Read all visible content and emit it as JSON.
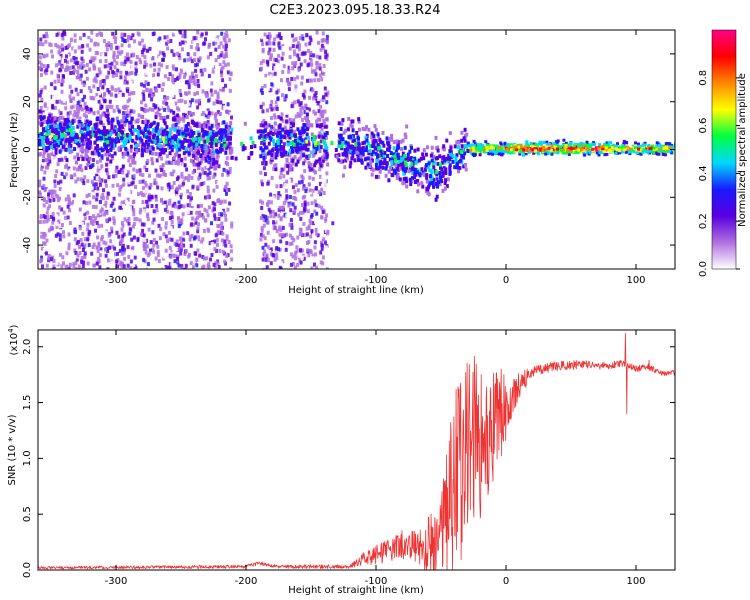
{
  "figure": {
    "title": "C2E3.2023.095.18.33.R24"
  },
  "chart_data": [
    {
      "type": "heatmap",
      "name": "spectrogram",
      "xlabel": "Height of straight line (km)",
      "ylabel": "Frequency (Hz)",
      "xlim": [
        -360,
        130
      ],
      "ylim": [
        -50,
        50
      ],
      "xticks": [
        -300,
        -200,
        -100,
        0,
        100
      ],
      "yticks": [
        -40,
        -20,
        0,
        20,
        40
      ],
      "gaps_without_signal_km": [
        [
          -212,
          -190
        ],
        [
          -138,
          -120
        ]
      ],
      "main_line": [
        {
          "x": -360,
          "y": 7
        },
        {
          "x": -300,
          "y": 6
        },
        {
          "x": -250,
          "y": 5
        },
        {
          "x": -200,
          "y": 4
        },
        {
          "x": -150,
          "y": 4
        },
        {
          "x": -110,
          "y": 2
        },
        {
          "x": -90,
          "y": -2
        },
        {
          "x": -70,
          "y": -6
        },
        {
          "x": -55,
          "y": -8
        },
        {
          "x": -45,
          "y": -4
        },
        {
          "x": -35,
          "y": 0
        },
        {
          "x": -25,
          "y": 1
        },
        {
          "x": 0,
          "y": 1
        },
        {
          "x": 130,
          "y": 1
        }
      ],
      "colorbar": {
        "label": "Normalized spectral amplitude",
        "range": [
          0.0,
          1.0
        ],
        "ticks": [
          "0.0",
          "0.2",
          "0.4",
          "0.6",
          "0.8"
        ],
        "colors": [
          "#ffffff",
          "#b070e0",
          "#5a00e0",
          "#1a1aff",
          "#00d8ff",
          "#00ff40",
          "#ffff00",
          "#ff8800",
          "#ff0000",
          "#ff0088"
        ]
      }
    },
    {
      "type": "line",
      "name": "snr",
      "color": "#ee3333",
      "xlabel": "Height of straight line (km)",
      "ylabel": "SNR (10 * v/v)",
      "multiplier_label": "(x10",
      "multiplier_exponent": "4",
      "multiplier_close": ")",
      "xlim": [
        -360,
        130
      ],
      "ylim": [
        0,
        2.15
      ],
      "xticks": [
        -300,
        -200,
        -100,
        0,
        100
      ],
      "yticks": [
        "0.0",
        "0.5",
        "1.0",
        "1.5",
        "2.0"
      ],
      "ytick_values": [
        0,
        0.5,
        1.0,
        1.5,
        2.0
      ],
      "envelope": [
        {
          "x": -360,
          "y": 0.02
        },
        {
          "x": -200,
          "y": 0.03
        },
        {
          "x": -190,
          "y": 0.06
        },
        {
          "x": -175,
          "y": 0.03
        },
        {
          "x": -120,
          "y": 0.03
        },
        {
          "x": -110,
          "y": 0.1
        },
        {
          "x": -90,
          "y": 0.18
        },
        {
          "x": -75,
          "y": 0.25
        },
        {
          "x": -60,
          "y": 0.15
        },
        {
          "x": -50,
          "y": 0.35
        },
        {
          "x": -40,
          "y": 0.75
        },
        {
          "x": -30,
          "y": 1.1
        },
        {
          "x": -20,
          "y": 1.15
        },
        {
          "x": -10,
          "y": 1.3
        },
        {
          "x": 0,
          "y": 1.45
        },
        {
          "x": 10,
          "y": 1.65
        },
        {
          "x": 20,
          "y": 1.78
        },
        {
          "x": 40,
          "y": 1.83
        },
        {
          "x": 60,
          "y": 1.84
        },
        {
          "x": 80,
          "y": 1.83
        },
        {
          "x": 90,
          "y": 1.85
        },
        {
          "x": 100,
          "y": 1.8
        },
        {
          "x": 110,
          "y": 1.82
        },
        {
          "x": 120,
          "y": 1.76
        },
        {
          "x": 130,
          "y": 1.77
        }
      ],
      "noise_amplitude": [
        {
          "x": -360,
          "a": 0.02
        },
        {
          "x": -120,
          "a": 0.03
        },
        {
          "x": -100,
          "a": 0.15
        },
        {
          "x": -70,
          "a": 0.25
        },
        {
          "x": -50,
          "a": 0.45
        },
        {
          "x": -40,
          "a": 0.8
        },
        {
          "x": -30,
          "a": 0.9
        },
        {
          "x": -15,
          "a": 0.6
        },
        {
          "x": 0,
          "a": 0.35
        },
        {
          "x": 20,
          "a": 0.08
        },
        {
          "x": 130,
          "a": 0.04
        }
      ],
      "spikes": [
        {
          "x": 92,
          "y": 2.12
        },
        {
          "x": 93,
          "y": 1.4
        },
        {
          "x": 110,
          "y": 1.88
        }
      ]
    }
  ]
}
